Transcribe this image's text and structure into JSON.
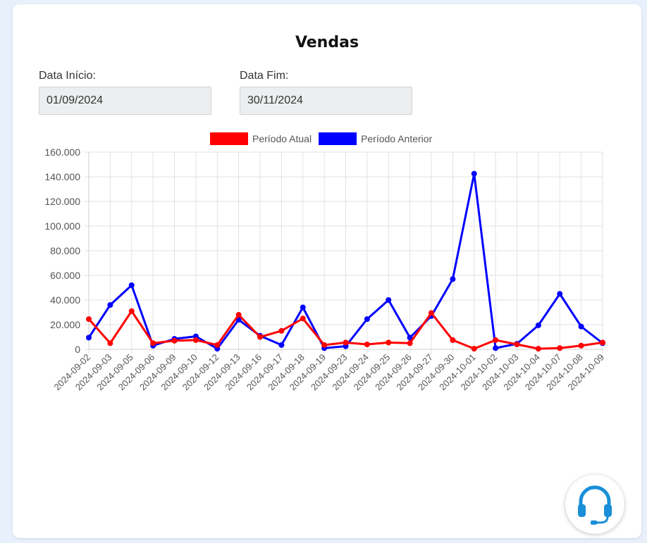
{
  "page": {
    "title": "Vendas",
    "start_label": "Data Início:",
    "start_value": "01/09/2024",
    "end_label": "Data Fim:",
    "end_value": "30/11/2024",
    "support_icon": "headset-icon"
  },
  "colors": {
    "current": "#ff0000",
    "previous": "#0000ff",
    "support_icon": "#1a8fd8",
    "background": "#e8f1fb"
  },
  "chart_data": {
    "type": "line",
    "legend_position": "top",
    "grid": true,
    "ylim": [
      0,
      160000
    ],
    "y_ticks": [
      "0",
      "20.000",
      "40.000",
      "60.000",
      "80.000",
      "100.000",
      "120.000",
      "140.000",
      "160.000"
    ],
    "categories": [
      "2024-09-02",
      "2024-09-03",
      "2024-09-05",
      "2024-09-06",
      "2024-09-09",
      "2024-09-10",
      "2024-09-12",
      "2024-09-13",
      "2024-09-16",
      "2024-09-17",
      "2024-09-18",
      "2024-09-19",
      "2024-09-23",
      "2024-09-24",
      "2024-09-25",
      "2024-09-26",
      "2024-09-27",
      "2024-09-30",
      "2024-10-01",
      "2024-10-02",
      "2024-10-03",
      "2024-10-04",
      "2024-10-07",
      "2024-10-08",
      "2024-10-09"
    ],
    "series": [
      {
        "name": "Período Atual",
        "color": "#ff0000",
        "values": [
          24500,
          5000,
          31000,
          5000,
          7000,
          7500,
          3500,
          28000,
          10000,
          15000,
          25000,
          3500,
          5500,
          4000,
          5500,
          5000,
          29500,
          7500,
          500,
          7500,
          4000,
          500,
          1000,
          3000,
          5500
        ]
      },
      {
        "name": "Período Anterior",
        "color": "#0000ff",
        "values": [
          9500,
          36000,
          52000,
          3000,
          8500,
          10500,
          500,
          24000,
          11000,
          3500,
          34000,
          1000,
          2500,
          24500,
          40000,
          9500,
          27000,
          57000,
          142500,
          1000,
          4500,
          19500,
          45000,
          18500,
          5000
        ]
      }
    ]
  }
}
